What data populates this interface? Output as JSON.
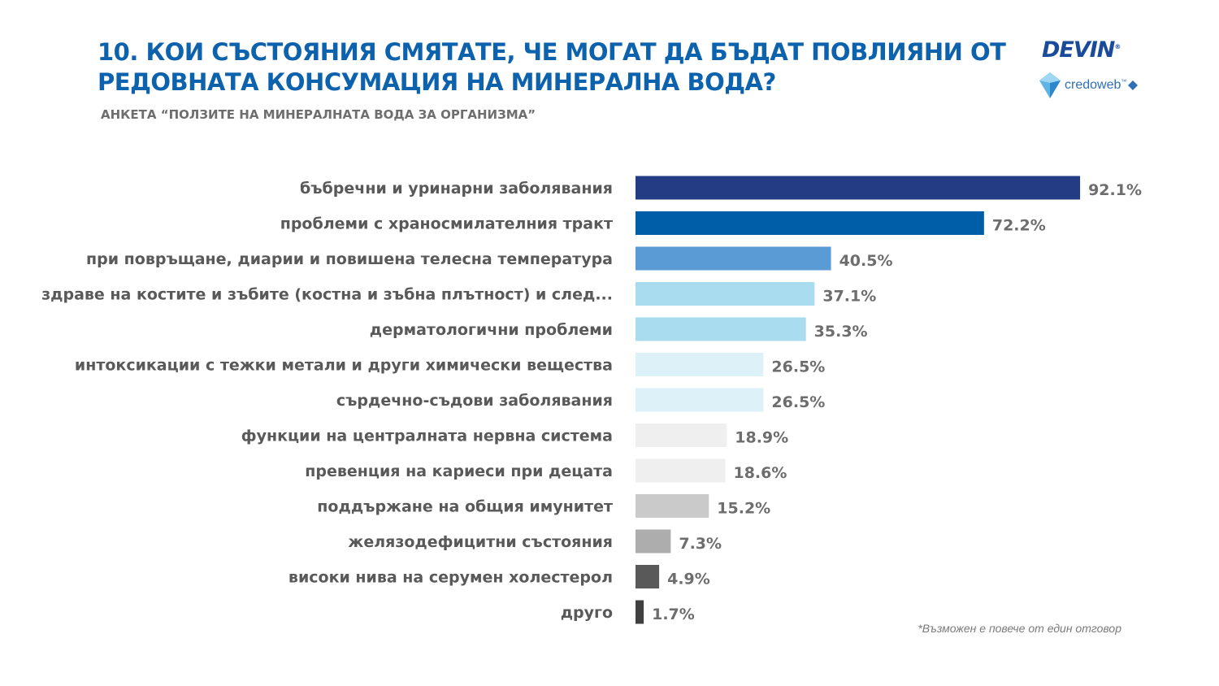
{
  "header": {
    "title": "10. КОИ СЪСТОЯНИЯ СМЯТАТЕ, ЧЕ МОГАТ ДА БЪДАТ ПОВЛИЯНИ ОТ РЕДОВНАТА КОНСУМАЦИЯ НА МИНЕРАЛНА ВОДА?",
    "subtitle": "АНКЕТА “ПОЛЗИТЕ НА МИНЕРАЛНАТА ВОДА ЗА ОРГАНИЗМА”"
  },
  "logos": {
    "devin": "DEVIN",
    "devin_mark": "®",
    "credoweb": "credoweb",
    "credoweb_mark": "™"
  },
  "footnote": "*Възможен е повече от един отговор",
  "chart_data": {
    "type": "bar",
    "orientation": "horizontal",
    "categories": [
      "бъбречни и уринарни заболявания",
      "проблеми с храносмилателния тракт",
      "при повръщане, диарии и повишена телесна температура",
      "здраве на костите и зъбите (костна и зъбна плътност) и след...",
      "дерматологични проблеми",
      "интоксикации с тежки метали и други химически вещества",
      "сърдечно-съдови заболявания",
      "функции на централната нервна система",
      "превенция на кариеси при децата",
      "поддържане на общия имунитет",
      "желязодефицитни състояния",
      "високи нива на серумен холестерол",
      "друго"
    ],
    "values": [
      92.1,
      72.2,
      40.5,
      37.1,
      35.3,
      26.5,
      26.5,
      18.9,
      18.6,
      15.2,
      7.3,
      4.9,
      1.7
    ],
    "value_labels": [
      "92.1%",
      "72.2%",
      "40.5%",
      "37.1%",
      "35.3%",
      "26.5%",
      "26.5%",
      "18.9%",
      "18.6%",
      "15.2%",
      "7.3%",
      "4.9%",
      "1.7%"
    ],
    "colors": [
      "#233c84",
      "#005ea8",
      "#5b9bd5",
      "#a8dcee",
      "#a8dcee",
      "#ddf1f8",
      "#ddf1f8",
      "#efefef",
      "#efefef",
      "#cacaca",
      "#adadad",
      "#595959",
      "#404040"
    ],
    "xlim": [
      0,
      100
    ],
    "grid": false,
    "legend": "none"
  }
}
